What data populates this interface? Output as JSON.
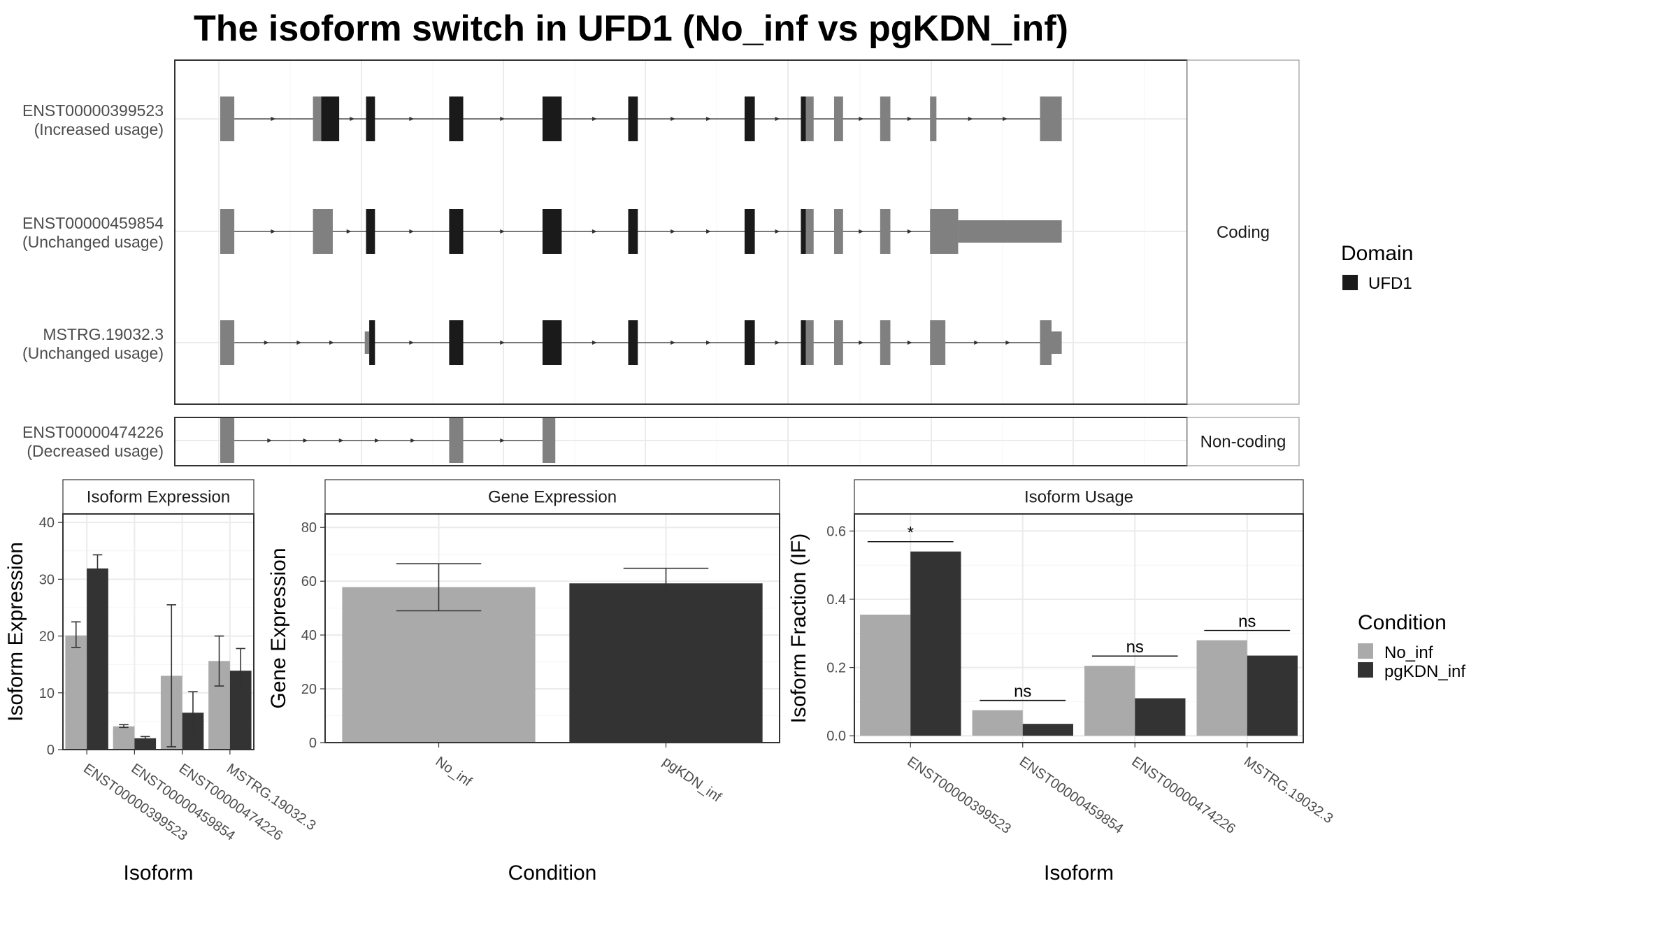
{
  "title": "The isoform switch in UFD1 (No_inf vs pgKDN_inf)",
  "colors": {
    "domain_ufd1": "#1a1a1a",
    "utr_exon": "#808080",
    "no_inf": "#aaaaaa",
    "pgKDN_inf": "#333333"
  },
  "chart_data": [
    {
      "type": "gene-structure",
      "genomic_range": [
        0,
        1440
      ],
      "groups": [
        {
          "label": "Coding",
          "tracks": [
            {
              "id": "ENST00000399523",
              "usage": "(Increased usage)",
              "exons": [
                {
                  "start": 0,
                  "end": 22,
                  "type": "utr"
                },
                {
                  "start": 145,
                  "end": 158,
                  "type": "utr"
                },
                {
                  "start": 158,
                  "end": 186,
                  "type": "domain"
                },
                {
                  "start": 228,
                  "end": 242,
                  "type": "domain"
                },
                {
                  "start": 358,
                  "end": 380,
                  "type": "domain"
                },
                {
                  "start": 504,
                  "end": 534,
                  "type": "domain"
                },
                {
                  "start": 638,
                  "end": 653,
                  "type": "domain"
                },
                {
                  "start": 820,
                  "end": 836,
                  "type": "domain"
                },
                {
                  "start": 908,
                  "end": 916,
                  "type": "domain"
                },
                {
                  "start": 916,
                  "end": 928,
                  "type": "utr"
                },
                {
                  "start": 960,
                  "end": 974,
                  "type": "utr"
                },
                {
                  "start": 1032,
                  "end": 1048,
                  "type": "utr"
                },
                {
                  "start": 1110,
                  "end": 1120,
                  "type": "utr"
                },
                {
                  "start": 1282,
                  "end": 1316,
                  "type": "utr"
                }
              ]
            },
            {
              "id": "ENST00000459854",
              "usage": "(Unchanged usage)",
              "exons": [
                {
                  "start": 0,
                  "end": 22,
                  "type": "utr"
                },
                {
                  "start": 145,
                  "end": 176,
                  "type": "utr"
                },
                {
                  "start": 228,
                  "end": 242,
                  "type": "domain"
                },
                {
                  "start": 358,
                  "end": 380,
                  "type": "domain"
                },
                {
                  "start": 504,
                  "end": 534,
                  "type": "domain"
                },
                {
                  "start": 638,
                  "end": 653,
                  "type": "domain"
                },
                {
                  "start": 820,
                  "end": 836,
                  "type": "domain"
                },
                {
                  "start": 908,
                  "end": 916,
                  "type": "domain"
                },
                {
                  "start": 916,
                  "end": 928,
                  "type": "utr"
                },
                {
                  "start": 960,
                  "end": 974,
                  "type": "utr"
                },
                {
                  "start": 1032,
                  "end": 1048,
                  "type": "utr"
                },
                {
                  "start": 1110,
                  "end": 1154,
                  "type": "utr"
                },
                {
                  "start": 1154,
                  "end": 1316,
                  "type": "utr",
                  "height": "half"
                }
              ]
            },
            {
              "id": "MSTRG.19032.3",
              "usage": "(Unchanged usage)",
              "exons": [
                {
                  "start": 0,
                  "end": 22,
                  "type": "utr"
                },
                {
                  "start": 226,
                  "end": 233,
                  "type": "utr",
                  "height": "half"
                },
                {
                  "start": 233,
                  "end": 242,
                  "type": "domain"
                },
                {
                  "start": 358,
                  "end": 380,
                  "type": "domain"
                },
                {
                  "start": 504,
                  "end": 534,
                  "type": "domain"
                },
                {
                  "start": 638,
                  "end": 653,
                  "type": "domain"
                },
                {
                  "start": 820,
                  "end": 836,
                  "type": "domain"
                },
                {
                  "start": 908,
                  "end": 916,
                  "type": "domain"
                },
                {
                  "start": 916,
                  "end": 928,
                  "type": "utr"
                },
                {
                  "start": 960,
                  "end": 974,
                  "type": "utr"
                },
                {
                  "start": 1032,
                  "end": 1048,
                  "type": "utr"
                },
                {
                  "start": 1110,
                  "end": 1134,
                  "type": "utr"
                },
                {
                  "start": 1282,
                  "end": 1300,
                  "type": "utr"
                },
                {
                  "start": 1300,
                  "end": 1316,
                  "type": "utr",
                  "height": "half"
                }
              ]
            }
          ]
        },
        {
          "label": "Non-coding",
          "tracks": [
            {
              "id": "ENST00000474226",
              "usage": "(Decreased usage)",
              "exons": [
                {
                  "start": 0,
                  "end": 22,
                  "type": "utr"
                },
                {
                  "start": 358,
                  "end": 380,
                  "type": "utr"
                },
                {
                  "start": 504,
                  "end": 524,
                  "type": "utr"
                }
              ]
            }
          ]
        }
      ],
      "legend": {
        "title": "Domain",
        "items": [
          "UFD1"
        ]
      }
    },
    {
      "type": "bar",
      "strip": "Gene Expression",
      "xlabel": "Condition",
      "ylabel": "Gene Expression",
      "ylim": [
        0,
        85
      ],
      "yticks": [
        0,
        20,
        40,
        60,
        80
      ],
      "categories": [
        "No_inf",
        "pgKDN_inf"
      ],
      "values": [
        57.8,
        59.2
      ],
      "errors": [
        [
          49,
          66.5
        ],
        [
          54,
          64.8
        ]
      ]
    },
    {
      "type": "bar",
      "strip": "Isoform Expression",
      "xlabel": "Isoform",
      "ylabel": "Isoform Expression",
      "ylim": [
        0,
        41.5
      ],
      "yticks": [
        0,
        10,
        20,
        30,
        40
      ],
      "categories": [
        "ENST00000399523",
        "ENST00000459854",
        "ENST00000474226",
        "MSTRG.19032.3"
      ],
      "series": [
        {
          "name": "No_inf",
          "values": [
            20.1,
            4.1,
            13.0,
            15.6
          ],
          "errors": [
            [
              18.0,
              22.5
            ],
            [
              3.9,
              4.4
            ],
            [
              0.5,
              25.5
            ],
            [
              11.2,
              20.0
            ]
          ]
        },
        {
          "name": "pgKDN_inf",
          "values": [
            31.9,
            2.0,
            6.5,
            13.9
          ],
          "errors": [
            [
              29.5,
              34.3
            ],
            [
              1.8,
              2.3
            ],
            [
              2.8,
              10.2
            ],
            [
              10.0,
              17.8
            ]
          ]
        }
      ]
    },
    {
      "type": "bar",
      "strip": "Isoform Usage",
      "xlabel": "Isoform",
      "ylabel": "Isoform Fraction (IF)",
      "ylim": [
        -0.02,
        0.65
      ],
      "yticks": [
        0.0,
        0.2,
        0.4,
        0.6
      ],
      "ytick_labels": [
        "0.0",
        "0.2",
        "0.4",
        "0.6"
      ],
      "categories": [
        "ENST00000399523",
        "ENST00000459854",
        "ENST00000474226",
        "MSTRG.19032.3"
      ],
      "series": [
        {
          "name": "No_inf",
          "values": [
            0.355,
            0.075,
            0.205,
            0.28
          ]
        },
        {
          "name": "pgKDN_inf",
          "values": [
            0.54,
            0.035,
            0.11,
            0.235
          ]
        }
      ],
      "significance": [
        "*",
        "ns",
        "ns",
        "ns"
      ]
    }
  ],
  "legend_condition": {
    "title": "Condition",
    "items": [
      "No_inf",
      "pgKDN_inf"
    ]
  }
}
